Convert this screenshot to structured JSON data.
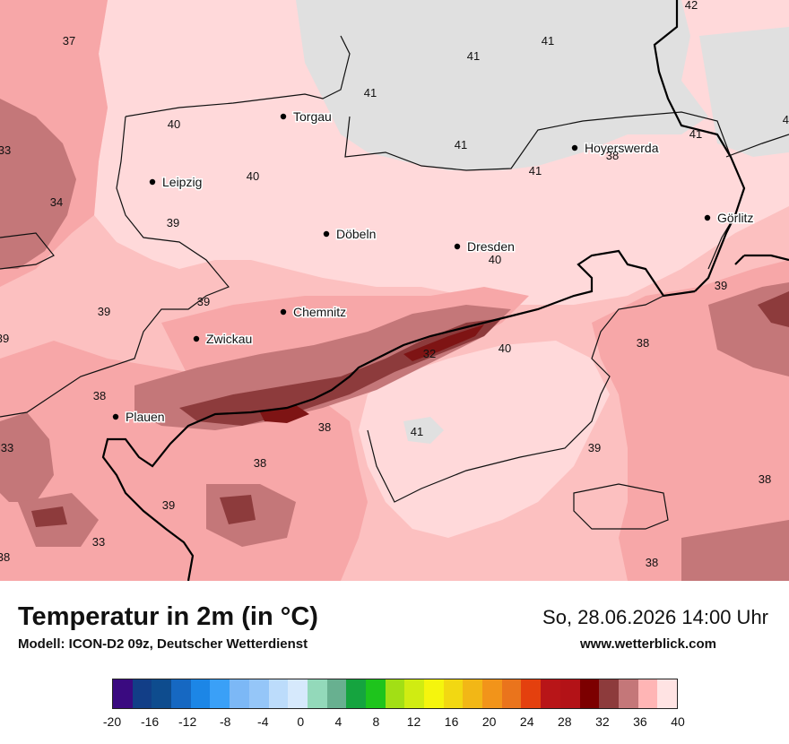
{
  "map": {
    "cities": [
      {
        "name": "Torgau"
      },
      {
        "name": "Hoyerswerda"
      },
      {
        "name": "Leipzig"
      },
      {
        "name": "Görlitz"
      },
      {
        "name": "Döbeln"
      },
      {
        "name": "Dresden"
      },
      {
        "name": "Chemnitz"
      },
      {
        "name": "Zwickau"
      },
      {
        "name": "Plauen"
      }
    ],
    "temperature_labels": [
      "42",
      "41",
      "41",
      "41",
      "41",
      "37",
      "40",
      "40",
      "41",
      "41",
      "38",
      "41",
      "33",
      "40",
      "34",
      "39",
      "39",
      "39",
      "39",
      "38",
      "40",
      "32",
      "39",
      "33",
      "38",
      "41",
      "39",
      "38",
      "38",
      "38",
      "39",
      "33",
      "38",
      "38"
    ],
    "colors": {
      "t41": "#e0e0e0",
      "t40": "#ffd9da",
      "t39": "#fcc0c0",
      "t38": "#f7a7a8",
      "t36": "#c47779",
      "t34": "#8d3b3c",
      "t32": "#7e1414"
    }
  },
  "footer": {
    "title": "Temperatur in 2m (in °C)",
    "model": "Modell: ICON-D2 09z, Deutscher Wetterdienst",
    "datetime": "So, 28.06.2026 14:00 Uhr",
    "website": "www.wetterblick.com"
  },
  "legend": {
    "ticks": [
      "-20",
      "-16",
      "-12",
      "-8",
      "-4",
      "0",
      "4",
      "8",
      "12",
      "16",
      "20",
      "24",
      "28",
      "32",
      "36",
      "40"
    ],
    "colors": [
      "#3a0a80",
      "#123e87",
      "#0e4c8e",
      "#1668c2",
      "#1c86e6",
      "#3aa0f7",
      "#7cb8f6",
      "#95c6f8",
      "#bcdcfb",
      "#d6e9fc",
      "#93d9ba",
      "#68b090",
      "#15a43f",
      "#1ec41c",
      "#a2df15",
      "#d0ec12",
      "#f5f50d",
      "#f2d812",
      "#f2b716",
      "#f2941a",
      "#ea741c",
      "#e4400e",
      "#b81518",
      "#b31217",
      "#7c0000",
      "#8d3b3c",
      "#c47779",
      "#ffb5b5",
      "#ffe3e3"
    ]
  }
}
